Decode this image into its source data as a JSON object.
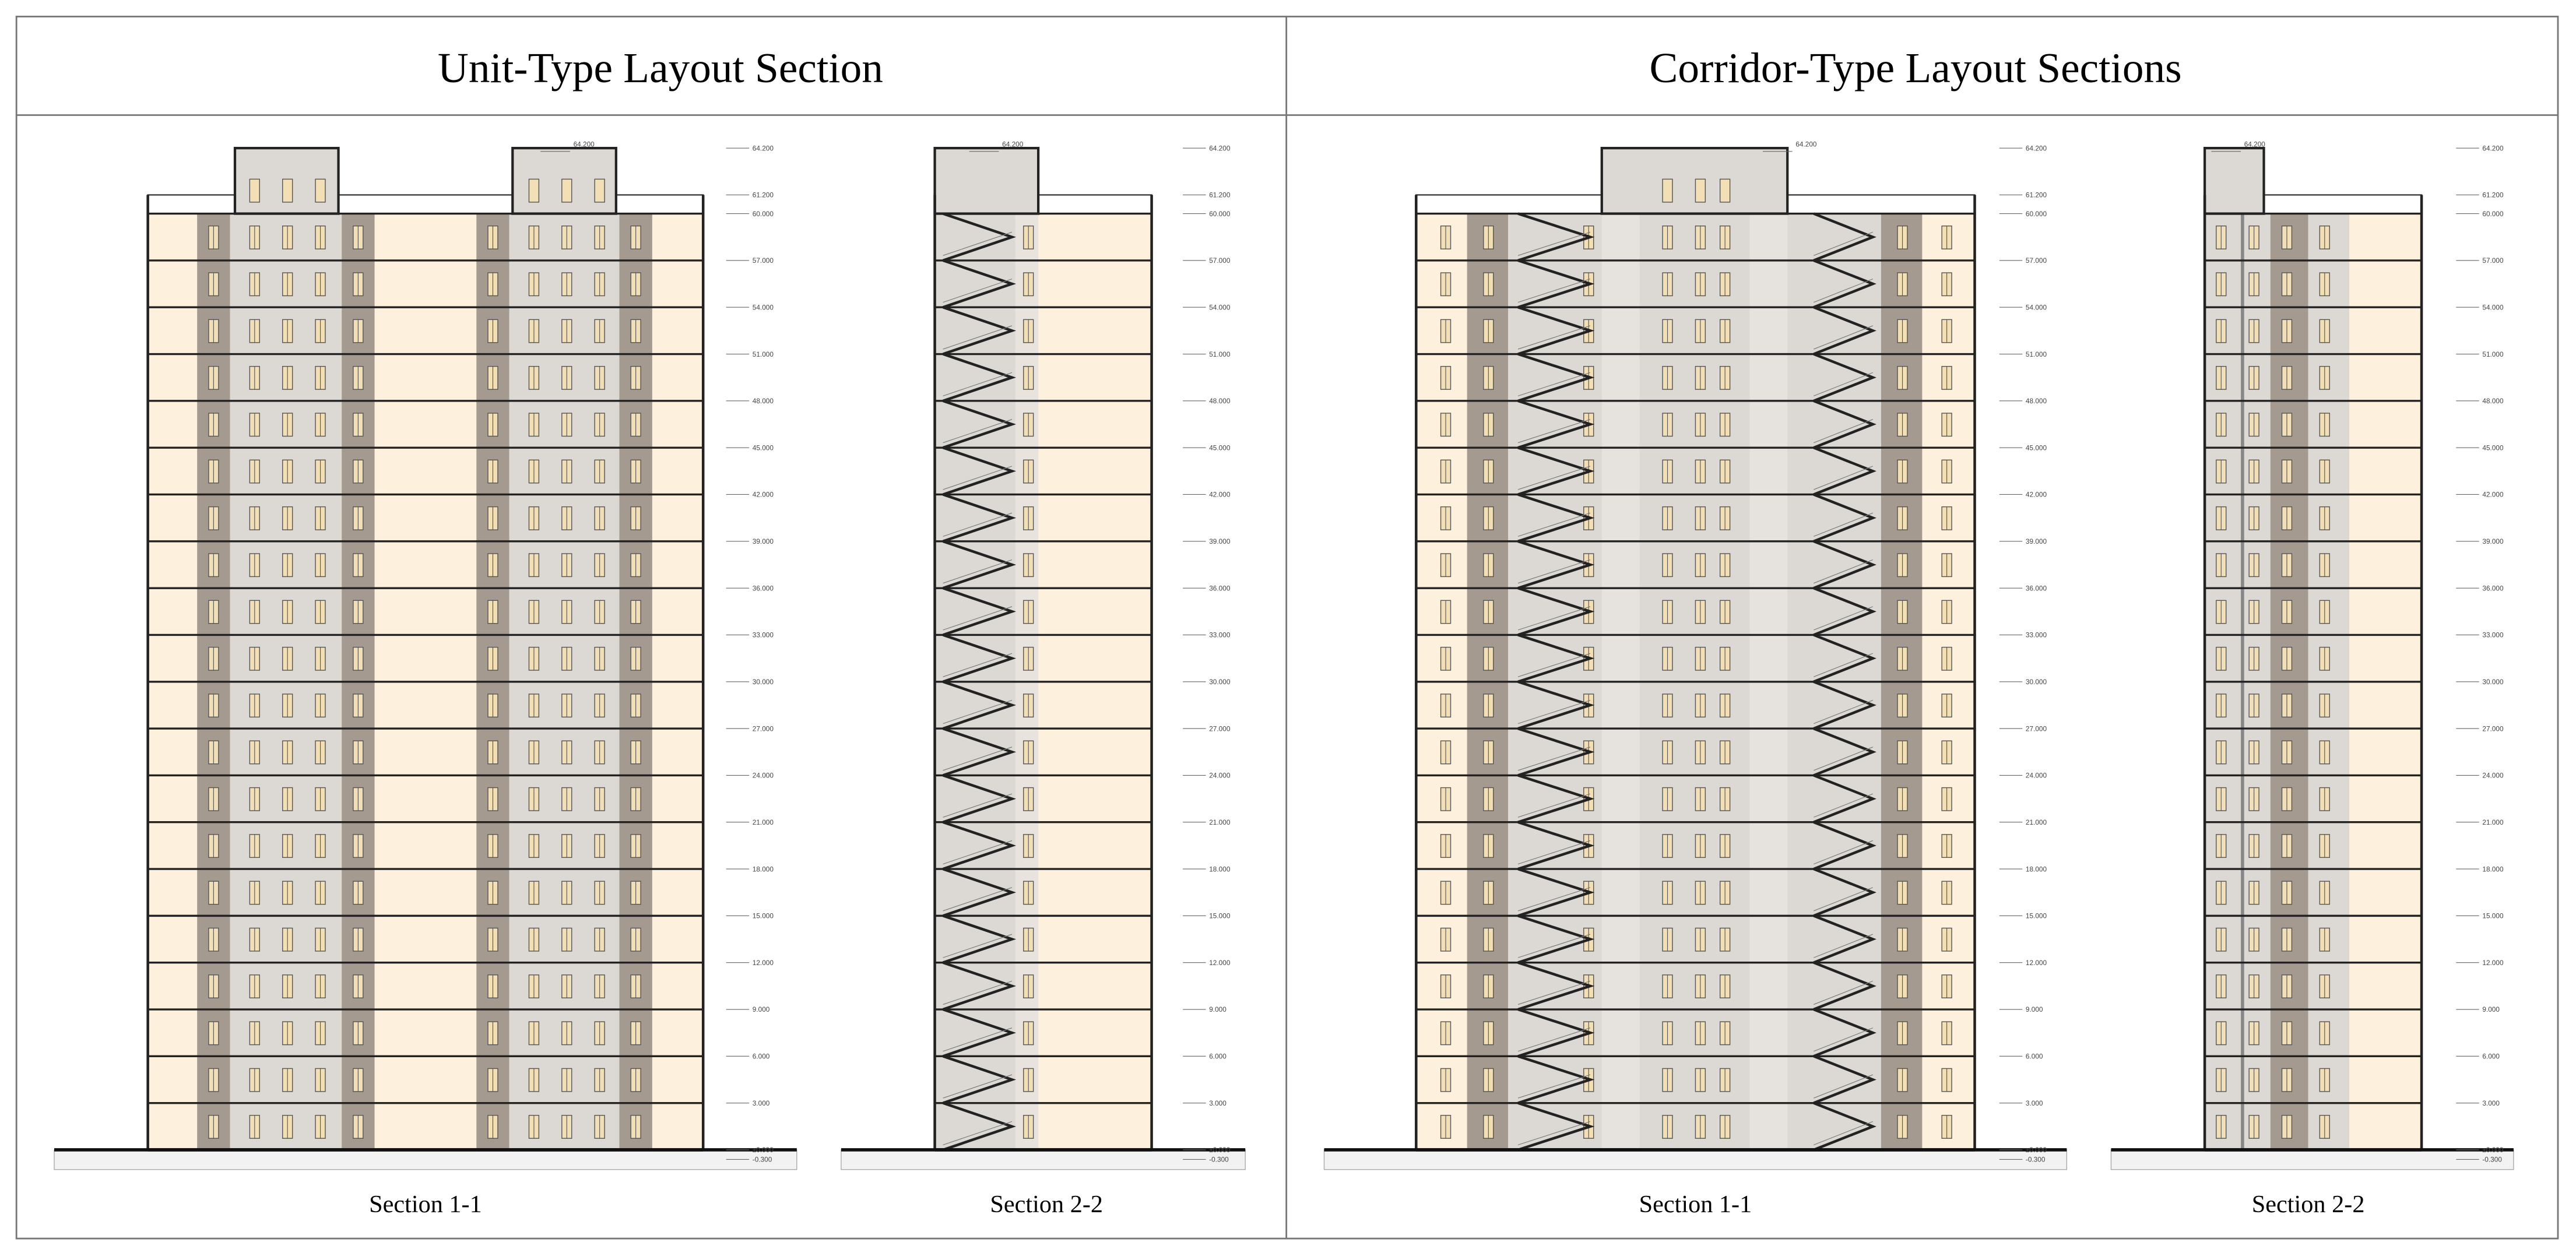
{
  "header": {
    "left_title": "Unit-Type Layout Section",
    "right_title": "Corridor-Type Layout Sections"
  },
  "sections": [
    {
      "caption": "Section 1-1"
    },
    {
      "caption": "Section 2-2"
    },
    {
      "caption": "Section 1-1"
    },
    {
      "caption": "Section 2-2"
    }
  ],
  "levels": [
    {
      "value": 64.2,
      "label": "64.200"
    },
    {
      "value": 61.2,
      "label": "61.200"
    },
    {
      "value": 60,
      "label": "60.000"
    },
    {
      "value": 57,
      "label": "57.000"
    },
    {
      "value": 54,
      "label": "54.000"
    },
    {
      "value": 51,
      "label": "51.000"
    },
    {
      "value": 48,
      "label": "48.000"
    },
    {
      "value": 45,
      "label": "45.000"
    },
    {
      "value": 42,
      "label": "42.000"
    },
    {
      "value": 39,
      "label": "39.000"
    },
    {
      "value": 36,
      "label": "36.000"
    },
    {
      "value": 33,
      "label": "33.000"
    },
    {
      "value": 30,
      "label": "30.000"
    },
    {
      "value": 27,
      "label": "27.000"
    },
    {
      "value": 24,
      "label": "24.000"
    },
    {
      "value": 21,
      "label": "21.000"
    },
    {
      "value": 18,
      "label": "18.000"
    },
    {
      "value": 15,
      "label": "15.000"
    },
    {
      "value": 12,
      "label": "12.000"
    },
    {
      "value": 9,
      "label": "9.000"
    },
    {
      "value": 6,
      "label": "6.000"
    },
    {
      "value": 3,
      "label": "3.000"
    },
    {
      "value": 0,
      "label": "±0.000"
    },
    {
      "value": -0.3,
      "label": "-0.300"
    }
  ]
}
